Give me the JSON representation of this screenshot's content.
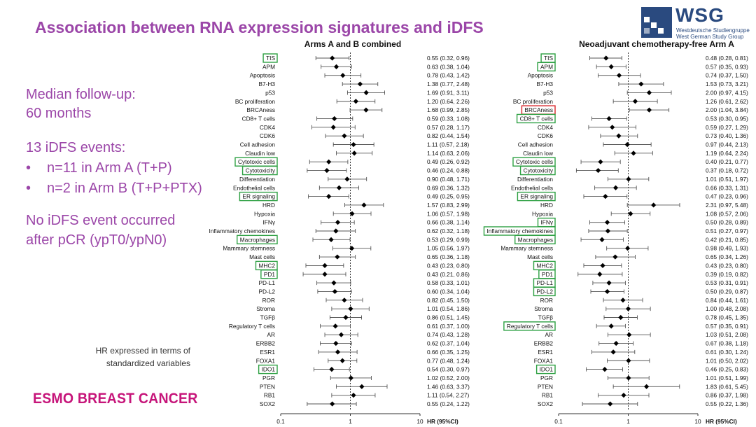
{
  "slide": {
    "title": "Association between RNA expression signatures and iDFS",
    "median_followup_line1": "Median follow-up:",
    "median_followup_line2": "60 months",
    "events_title": "13 iDFS events:",
    "bullet_marker": "•",
    "events_arm_a": "n=11 in Arm A (T+P)",
    "events_arm_b": "n=2 in Arm B (T+P+PTX)",
    "no_event_line1": "No iDFS event occurred",
    "no_event_line2": "after pCR (ypT0/ypN0)",
    "hr_note_line1": "HR expressed in terms of",
    "hr_note_line2": "standardized variables",
    "footer_logo": "ESMO BREAST CANCER"
  },
  "logo": {
    "name": "WSG",
    "sub1": "Westdeutsche Studiengruppe",
    "sub2": "West German Study Group",
    "color": "#2a4a7f"
  },
  "colors": {
    "title": "#9b46a8",
    "highlight_green": "#2ea043",
    "highlight_red": "#d9262b",
    "esmo": "#c6157a"
  },
  "chart_data": [
    {
      "type": "forest",
      "title": "Arms A and B combined",
      "x_scale": "log",
      "xlim": [
        0.1,
        10
      ],
      "x_ticks": [
        "0.1",
        "1",
        "10"
      ],
      "xlabel": "HR (95%CI)",
      "reference_line": 1,
      "rows": [
        {
          "label": "TIS",
          "hr": 0.55,
          "lo": 0.32,
          "hi": 0.96,
          "text": "0.55 (0.32, 0.96)",
          "box": "green"
        },
        {
          "label": "APM",
          "hr": 0.63,
          "lo": 0.38,
          "hi": 1.04,
          "text": "0.63 (0.38, 1.04)",
          "box": ""
        },
        {
          "label": "Apoptosis",
          "hr": 0.78,
          "lo": 0.43,
          "hi": 1.42,
          "text": "0.78 (0.43, 1.42)",
          "box": ""
        },
        {
          "label": "B7-H3",
          "hr": 1.38,
          "lo": 0.77,
          "hi": 2.48,
          "text": "1.38 (0.77, 2.48)",
          "box": ""
        },
        {
          "label": "p53",
          "hr": 1.69,
          "lo": 0.91,
          "hi": 3.11,
          "text": "1.69 (0.91, 3.11)",
          "box": ""
        },
        {
          "label": "BC proliferation",
          "hr": 1.2,
          "lo": 0.64,
          "hi": 2.26,
          "text": "1.20 (0.64, 2.26)",
          "box": ""
        },
        {
          "label": "BRCAness",
          "hr": 1.68,
          "lo": 0.99,
          "hi": 2.85,
          "text": "1.68 (0.99, 2.85)",
          "box": ""
        },
        {
          "label": "CD8+ T cells",
          "hr": 0.59,
          "lo": 0.33,
          "hi": 1.08,
          "text": "0.59 (0.33, 1.08)",
          "box": ""
        },
        {
          "label": "CDK4",
          "hr": 0.57,
          "lo": 0.28,
          "hi": 1.17,
          "text": "0.57 (0.28, 1.17)",
          "box": ""
        },
        {
          "label": "CDK6",
          "hr": 0.82,
          "lo": 0.44,
          "hi": 1.54,
          "text": "0.82 (0.44, 1.54)",
          "box": ""
        },
        {
          "label": "Cell adhesion",
          "hr": 1.11,
          "lo": 0.57,
          "hi": 2.18,
          "text": "1.11 (0.57, 2.18)",
          "box": ""
        },
        {
          "label": "Claudin low",
          "hr": 1.14,
          "lo": 0.63,
          "hi": 2.06,
          "text": "1.14 (0.63, 2.06)",
          "box": ""
        },
        {
          "label": "Cytotoxic cells",
          "hr": 0.49,
          "lo": 0.26,
          "hi": 0.92,
          "text": "0.49 (0.26, 0.92)",
          "box": "green"
        },
        {
          "label": "Cytotoxicity",
          "hr": 0.46,
          "lo": 0.24,
          "hi": 0.88,
          "text": "0.46 (0.24, 0.88)",
          "box": "green"
        },
        {
          "label": "Differentiation",
          "hr": 0.9,
          "lo": 0.48,
          "hi": 1.71,
          "text": "0.90 (0.48, 1.71)",
          "box": ""
        },
        {
          "label": "Endothelial cells",
          "hr": 0.69,
          "lo": 0.36,
          "hi": 1.32,
          "text": "0.69 (0.36, 1.32)",
          "box": ""
        },
        {
          "label": "ER signaling",
          "hr": 0.49,
          "lo": 0.25,
          "hi": 0.95,
          "text": "0.49 (0.25, 0.95)",
          "box": "green"
        },
        {
          "label": "HRD",
          "hr": 1.57,
          "lo": 0.83,
          "hi": 2.99,
          "text": "1.57 (0.83, 2.99)",
          "box": ""
        },
        {
          "label": "Hypoxia",
          "hr": 1.06,
          "lo": 0.57,
          "hi": 1.98,
          "text": "1.06 (0.57, 1.98)",
          "box": ""
        },
        {
          "label": "IFNγ",
          "hr": 0.66,
          "lo": 0.38,
          "hi": 1.14,
          "text": "0.66 (0.38, 1.14)",
          "box": ""
        },
        {
          "label": "Inflammatory chemokines",
          "hr": 0.62,
          "lo": 0.32,
          "hi": 1.18,
          "text": "0.62 (0.32, 1.18)",
          "box": ""
        },
        {
          "label": "Macrophages",
          "hr": 0.53,
          "lo": 0.29,
          "hi": 0.99,
          "text": "0.53 (0.29, 0.99)",
          "box": "green"
        },
        {
          "label": "Mammary stemness",
          "hr": 1.05,
          "lo": 0.56,
          "hi": 1.97,
          "text": "1.05 (0.56, 1.97)",
          "box": ""
        },
        {
          "label": "Mast cells",
          "hr": 0.65,
          "lo": 0.36,
          "hi": 1.18,
          "text": "0.65 (0.36, 1.18)",
          "box": ""
        },
        {
          "label": "MHC2",
          "hr": 0.43,
          "lo": 0.23,
          "hi": 0.8,
          "text": "0.43 (0.23, 0.80)",
          "box": "green"
        },
        {
          "label": "PD1",
          "hr": 0.43,
          "lo": 0.21,
          "hi": 0.86,
          "text": "0.43 (0.21, 0.86)",
          "box": "green"
        },
        {
          "label": "PD-L1",
          "hr": 0.58,
          "lo": 0.33,
          "hi": 1.01,
          "text": "0.58 (0.33, 1.01)",
          "box": ""
        },
        {
          "label": "PD-L2",
          "hr": 0.6,
          "lo": 0.34,
          "hi": 1.04,
          "text": "0.60 (0.34, 1.04)",
          "box": ""
        },
        {
          "label": "ROR",
          "hr": 0.82,
          "lo": 0.45,
          "hi": 1.5,
          "text": "0.82 (0.45, 1.50)",
          "box": ""
        },
        {
          "label": "Stroma",
          "hr": 1.01,
          "lo": 0.54,
          "hi": 1.86,
          "text": "1.01 (0.54, 1.86)",
          "box": ""
        },
        {
          "label": "TGFβ",
          "hr": 0.86,
          "lo": 0.51,
          "hi": 1.45,
          "text": "0.86 (0.51, 1.45)",
          "box": ""
        },
        {
          "label": "Regulatory T cells",
          "hr": 0.61,
          "lo": 0.37,
          "hi": 1.0,
          "text": "0.61 (0.37, 1.00)",
          "box": ""
        },
        {
          "label": "AR",
          "hr": 0.74,
          "lo": 0.43,
          "hi": 1.28,
          "text": "0.74 (0.43, 1.28)",
          "box": ""
        },
        {
          "label": "ERBB2",
          "hr": 0.62,
          "lo": 0.37,
          "hi": 1.04,
          "text": "0.62 (0.37, 1.04)",
          "box": ""
        },
        {
          "label": "ESR1",
          "hr": 0.66,
          "lo": 0.35,
          "hi": 1.25,
          "text": "0.66 (0.35, 1.25)",
          "box": ""
        },
        {
          "label": "FOXA1",
          "hr": 0.77,
          "lo": 0.48,
          "hi": 1.24,
          "text": "0.77 (0.48, 1.24)",
          "box": ""
        },
        {
          "label": "IDO1",
          "hr": 0.54,
          "lo": 0.3,
          "hi": 0.97,
          "text": "0.54 (0.30, 0.97)",
          "box": "green"
        },
        {
          "label": "PGR",
          "hr": 1.02,
          "lo": 0.52,
          "hi": 2.0,
          "text": "1.02 (0.52, 2.00)",
          "box": ""
        },
        {
          "label": "PTEN",
          "hr": 1.46,
          "lo": 0.63,
          "hi": 3.37,
          "text": "1.46 (0.63, 3.37)",
          "box": ""
        },
        {
          "label": "RB1",
          "hr": 1.11,
          "lo": 0.54,
          "hi": 2.27,
          "text": "1.11 (0.54, 2.27)",
          "box": ""
        },
        {
          "label": "SOX2",
          "hr": 0.55,
          "lo": 0.24,
          "hi": 1.22,
          "text": "0.55 (0.24, 1.22)",
          "box": ""
        }
      ]
    },
    {
      "type": "forest",
      "title": "Neoadjuvant chemotherapy-free Arm A",
      "x_scale": "log",
      "xlim": [
        0.1,
        10
      ],
      "x_ticks": [
        "0.1",
        "1",
        "10"
      ],
      "xlabel": "HR (95%CI)",
      "reference_line": 1,
      "rows": [
        {
          "label": "TIS",
          "hr": 0.48,
          "lo": 0.28,
          "hi": 0.81,
          "text": "0.48 (0.28, 0.81)",
          "box": "green"
        },
        {
          "label": "APM",
          "hr": 0.57,
          "lo": 0.35,
          "hi": 0.93,
          "text": "0.57 (0.35, 0.93)",
          "box": "green"
        },
        {
          "label": "Apoptosis",
          "hr": 0.74,
          "lo": 0.37,
          "hi": 1.5,
          "text": "0.74 (0.37, 1.50)",
          "box": ""
        },
        {
          "label": "B7-H3",
          "hr": 1.53,
          "lo": 0.73,
          "hi": 3.21,
          "text": "1.53 (0.73, 3.21)",
          "box": ""
        },
        {
          "label": "p53",
          "hr": 2.0,
          "lo": 0.97,
          "hi": 4.15,
          "text": "2.00 (0.97, 4.15)",
          "box": ""
        },
        {
          "label": "BC proliferation",
          "hr": 1.26,
          "lo": 0.61,
          "hi": 2.62,
          "text": "1.26 (0.61, 2.62)",
          "box": ""
        },
        {
          "label": "BRCAness",
          "hr": 2.0,
          "lo": 1.04,
          "hi": 3.84,
          "text": "2.00 (1.04, 3.84)",
          "box": "red"
        },
        {
          "label": "CD8+ T cells",
          "hr": 0.53,
          "lo": 0.3,
          "hi": 0.95,
          "text": "0.53 (0.30, 0.95)",
          "box": "green"
        },
        {
          "label": "CDK4",
          "hr": 0.59,
          "lo": 0.27,
          "hi": 1.29,
          "text": "0.59 (0.27, 1.29)",
          "box": ""
        },
        {
          "label": "CDK6",
          "hr": 0.73,
          "lo": 0.4,
          "hi": 1.36,
          "text": "0.73 (0.40, 1.36)",
          "box": ""
        },
        {
          "label": "Cell adhesion",
          "hr": 0.97,
          "lo": 0.44,
          "hi": 2.13,
          "text": "0.97 (0.44, 2.13)",
          "box": ""
        },
        {
          "label": "Claudin low",
          "hr": 1.19,
          "lo": 0.64,
          "hi": 2.24,
          "text": "1.19 (0.64, 2.24)",
          "box": ""
        },
        {
          "label": "Cytotoxic cells",
          "hr": 0.4,
          "lo": 0.21,
          "hi": 0.77,
          "text": "0.40 (0.21, 0.77)",
          "box": "green"
        },
        {
          "label": "Cytotoxicity",
          "hr": 0.37,
          "lo": 0.18,
          "hi": 0.72,
          "text": "0.37 (0.18, 0.72)",
          "box": "green"
        },
        {
          "label": "Differentiation",
          "hr": 1.01,
          "lo": 0.51,
          "hi": 1.97,
          "text": "1.01 (0.51, 1.97)",
          "box": ""
        },
        {
          "label": "Endothelial cells",
          "hr": 0.66,
          "lo": 0.33,
          "hi": 1.31,
          "text": "0.66 (0.33, 1.31)",
          "box": ""
        },
        {
          "label": "ER signaling",
          "hr": 0.47,
          "lo": 0.23,
          "hi": 0.96,
          "text": "0.47 (0.23, 0.96)",
          "box": "green"
        },
        {
          "label": "HRD",
          "hr": 2.31,
          "lo": 0.97,
          "hi": 5.48,
          "text": "2.31 (0.97, 5.48)",
          "box": ""
        },
        {
          "label": "Hypoxia",
          "hr": 1.08,
          "lo": 0.57,
          "hi": 2.06,
          "text": "1.08 (0.57, 2.06)",
          "box": ""
        },
        {
          "label": "IFNγ",
          "hr": 0.5,
          "lo": 0.28,
          "hi": 0.89,
          "text": "0.50 (0.28, 0.89)",
          "box": "green"
        },
        {
          "label": "Inflammatory chemokines",
          "hr": 0.51,
          "lo": 0.27,
          "hi": 0.97,
          "text": "0.51 (0.27, 0.97)",
          "box": "green"
        },
        {
          "label": "Macrophages",
          "hr": 0.42,
          "lo": 0.21,
          "hi": 0.85,
          "text": "0.42 (0.21, 0.85)",
          "box": "green"
        },
        {
          "label": "Mammary stemness",
          "hr": 0.98,
          "lo": 0.49,
          "hi": 1.93,
          "text": "0.98 (0.49, 1.93)",
          "box": ""
        },
        {
          "label": "Mast cells",
          "hr": 0.65,
          "lo": 0.34,
          "hi": 1.26,
          "text": "0.65 (0.34, 1.26)",
          "box": ""
        },
        {
          "label": "MHC2",
          "hr": 0.43,
          "lo": 0.23,
          "hi": 0.8,
          "text": "0.43 (0.23, 0.80)",
          "box": "green"
        },
        {
          "label": "PD1",
          "hr": 0.39,
          "lo": 0.19,
          "hi": 0.82,
          "text": "0.39 (0.19, 0.82)",
          "box": "green"
        },
        {
          "label": "PD-L1",
          "hr": 0.53,
          "lo": 0.31,
          "hi": 0.91,
          "text": "0.53 (0.31, 0.91)",
          "box": "green"
        },
        {
          "label": "PD-L2",
          "hr": 0.5,
          "lo": 0.29,
          "hi": 0.87,
          "text": "0.50 (0.29, 0.87)",
          "box": "green"
        },
        {
          "label": "ROR",
          "hr": 0.84,
          "lo": 0.44,
          "hi": 1.61,
          "text": "0.84 (0.44, 1.61)",
          "box": ""
        },
        {
          "label": "Stroma",
          "hr": 1.0,
          "lo": 0.48,
          "hi": 2.08,
          "text": "1.00 (0.48, 2.08)",
          "box": ""
        },
        {
          "label": "TGFβ",
          "hr": 0.78,
          "lo": 0.45,
          "hi": 1.35,
          "text": "0.78 (0.45, 1.35)",
          "box": ""
        },
        {
          "label": "Regulatory T cells",
          "hr": 0.57,
          "lo": 0.35,
          "hi": 0.91,
          "text": "0.57 (0.35, 0.91)",
          "box": "green"
        },
        {
          "label": "AR",
          "hr": 1.03,
          "lo": 0.51,
          "hi": 2.08,
          "text": "1.03 (0.51, 2.08)",
          "box": ""
        },
        {
          "label": "ERBB2",
          "hr": 0.67,
          "lo": 0.38,
          "hi": 1.18,
          "text": "0.67 (0.38, 1.18)",
          "box": ""
        },
        {
          "label": "ESR1",
          "hr": 0.61,
          "lo": 0.3,
          "hi": 1.24,
          "text": "0.61 (0.30, 1.24)",
          "box": ""
        },
        {
          "label": "FOXA1",
          "hr": 1.01,
          "lo": 0.5,
          "hi": 2.02,
          "text": "1.01 (0.50, 2.02)",
          "box": ""
        },
        {
          "label": "IDO1",
          "hr": 0.46,
          "lo": 0.25,
          "hi": 0.83,
          "text": "0.46 (0.25, 0.83)",
          "box": "green"
        },
        {
          "label": "PGR",
          "hr": 1.01,
          "lo": 0.51,
          "hi": 1.99,
          "text": "1.01 (0.51, 1.99)",
          "box": ""
        },
        {
          "label": "PTEN",
          "hr": 1.83,
          "lo": 0.61,
          "hi": 5.45,
          "text": "1.83 (0.61, 5.45)",
          "box": ""
        },
        {
          "label": "RB1",
          "hr": 0.86,
          "lo": 0.37,
          "hi": 1.98,
          "text": "0.86 (0.37, 1.98)",
          "box": ""
        },
        {
          "label": "SOX2",
          "hr": 0.55,
          "lo": 0.22,
          "hi": 1.36,
          "text": "0.55 (0.22, 1.36)",
          "box": ""
        }
      ]
    }
  ]
}
